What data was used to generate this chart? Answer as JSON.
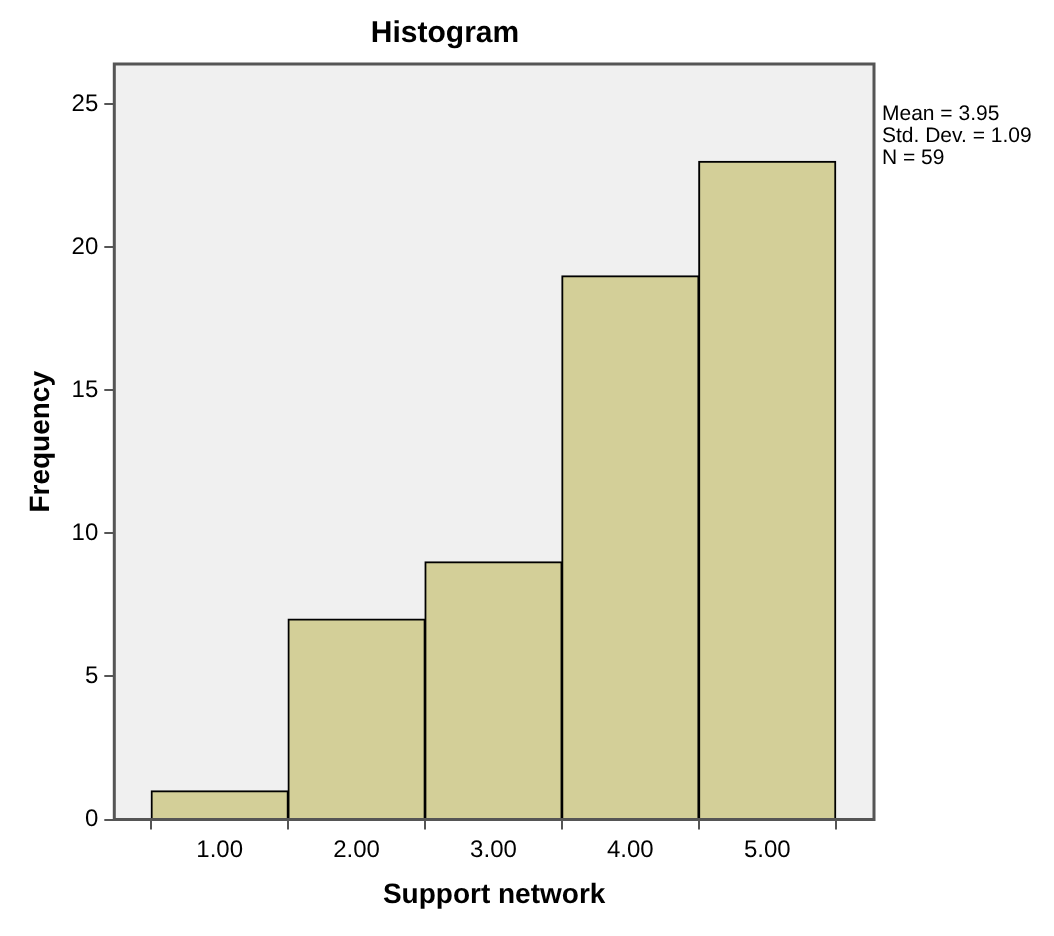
{
  "chart_data": {
    "type": "histogram",
    "title": "Histogram",
    "xlabel": "Support network",
    "ylabel": "Frequency",
    "bins": [
      0.5,
      1.5,
      2.5,
      3.5,
      4.5,
      5.5
    ],
    "values": [
      1,
      7,
      9,
      19,
      23
    ],
    "color": "#d3cf98",
    "xlim": [
      0.23,
      5.78
    ],
    "xticks": [
      {
        "value": 1,
        "label": "1.00"
      },
      {
        "value": 2,
        "label": "2.00"
      },
      {
        "value": 3,
        "label": "3.00"
      },
      {
        "value": 4,
        "label": "4.00"
      },
      {
        "value": 5,
        "label": "5.00"
      }
    ],
    "ylim": [
      0,
      26.4
    ],
    "yticks": [
      0,
      5,
      10,
      15,
      20,
      25
    ],
    "annotations": [
      "Mean = 3.95",
      "Std. Dev. = 1.09",
      "N = 59"
    ],
    "grid": false,
    "legend": false
  }
}
